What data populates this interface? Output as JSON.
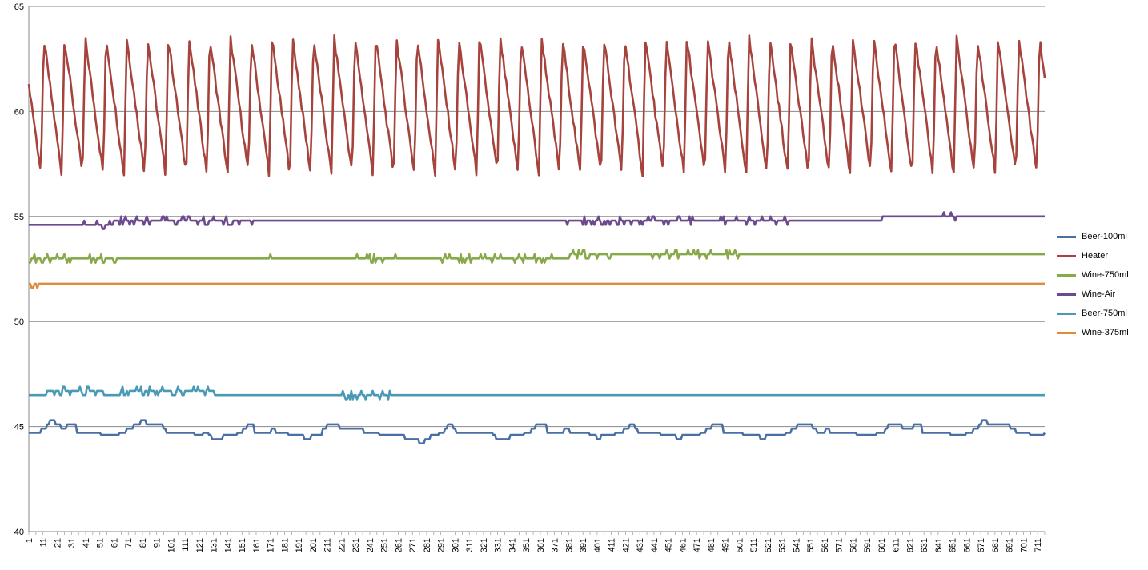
{
  "chart_data": {
    "type": "line",
    "title": "",
    "xlabel": "",
    "ylabel": "",
    "x_start": 1,
    "x_end": 716,
    "x_tick_labels": [
      "1",
      "11",
      "21",
      "31",
      "41",
      "51",
      "61",
      "71",
      "81",
      "91",
      "101",
      "111",
      "121",
      "131",
      "141",
      "151",
      "161",
      "171",
      "181",
      "191",
      "201",
      "211",
      "221",
      "231",
      "241",
      "251",
      "261",
      "271",
      "281",
      "291",
      "301",
      "311",
      "321",
      "331",
      "341",
      "351",
      "361",
      "371",
      "381",
      "391",
      "401",
      "411",
      "421",
      "431",
      "441",
      "451",
      "461",
      "471",
      "481",
      "491",
      "501",
      "511",
      "521",
      "531",
      "541",
      "551",
      "561",
      "571",
      "581",
      "591",
      "601",
      "611",
      "621",
      "631",
      "641",
      "651",
      "661",
      "671",
      "681",
      "691",
      "701",
      "711"
    ],
    "y_ticks": [
      "40",
      "45",
      "50",
      "55",
      "60",
      "65"
    ],
    "ylim": [
      40,
      65
    ],
    "grid": "horizontal major gridlines",
    "legend_position": "right",
    "series": [
      {
        "name": "Beer-100ml",
        "color": "#4a6fa5",
        "description_points": [
          [
            1,
            44.7
          ],
          [
            8,
            44.7
          ],
          [
            10,
            44.9
          ],
          [
            14,
            45.1
          ],
          [
            16,
            45.3
          ],
          [
            20,
            45.1
          ],
          [
            24,
            44.9
          ],
          [
            28,
            45.1
          ],
          [
            33,
            45.1
          ],
          [
            35,
            44.7
          ],
          [
            50,
            44.7
          ],
          [
            52,
            44.6
          ],
          [
            63,
            44.6
          ],
          [
            65,
            44.7
          ],
          [
            70,
            44.9
          ],
          [
            75,
            45.1
          ],
          [
            80,
            45.3
          ],
          [
            84,
            45.1
          ],
          [
            90,
            45.1
          ],
          [
            96,
            44.9
          ],
          [
            98,
            44.7
          ],
          [
            115,
            44.7
          ],
          [
            118,
            44.6
          ],
          [
            124,
            44.7
          ],
          [
            128,
            44.6
          ],
          [
            130,
            44.4
          ],
          [
            136,
            44.4
          ],
          [
            138,
            44.6
          ],
          [
            146,
            44.6
          ],
          [
            148,
            44.7
          ],
          [
            152,
            44.9
          ],
          [
            155,
            45.1
          ],
          [
            158,
            45.1
          ],
          [
            160,
            44.7
          ],
          [
            170,
            44.7
          ],
          [
            172,
            44.9
          ],
          [
            175,
            44.7
          ],
          [
            180,
            44.7
          ],
          [
            184,
            44.6
          ],
          [
            190,
            44.6
          ],
          [
            195,
            44.4
          ],
          [
            200,
            44.6
          ],
          [
            205,
            44.6
          ],
          [
            208,
            44.9
          ],
          [
            211,
            45.1
          ],
          [
            218,
            45.1
          ],
          [
            220,
            44.9
          ],
          [
            234,
            44.9
          ],
          [
            237,
            44.7
          ],
          [
            245,
            44.7
          ],
          [
            248,
            44.6
          ],
          [
            262,
            44.6
          ],
          [
            266,
            44.4
          ],
          [
            274,
            44.4
          ],
          [
            276,
            44.2
          ],
          [
            280,
            44.4
          ],
          [
            284,
            44.6
          ],
          [
            290,
            44.7
          ],
          [
            294,
            44.9
          ],
          [
            296,
            45.1
          ],
          [
            300,
            44.9
          ],
          [
            302,
            44.7
          ],
          [
            325,
            44.7
          ],
          [
            328,
            44.6
          ],
          [
            330,
            44.4
          ],
          [
            338,
            44.4
          ],
          [
            340,
            44.6
          ],
          [
            346,
            44.6
          ],
          [
            350,
            44.7
          ],
          [
            355,
            44.9
          ],
          [
            358,
            45.1
          ],
          [
            364,
            45.1
          ],
          [
            366,
            44.7
          ],
          [
            374,
            44.7
          ],
          [
            378,
            44.9
          ],
          [
            382,
            44.7
          ],
          [
            392,
            44.7
          ],
          [
            396,
            44.6
          ],
          [
            401,
            44.4
          ],
          [
            404,
            44.6
          ],
          [
            410,
            44.6
          ],
          [
            414,
            44.7
          ],
          [
            420,
            44.9
          ],
          [
            424,
            45.1
          ],
          [
            428,
            44.9
          ],
          [
            430,
            44.7
          ],
          [
            442,
            44.7
          ],
          [
            446,
            44.6
          ],
          [
            454,
            44.6
          ],
          [
            457,
            44.4
          ],
          [
            461,
            44.6
          ],
          [
            470,
            44.6
          ],
          [
            474,
            44.7
          ],
          [
            478,
            44.9
          ],
          [
            482,
            45.1
          ],
          [
            486,
            45.1
          ],
          [
            490,
            44.7
          ],
          [
            500,
            44.7
          ],
          [
            504,
            44.6
          ],
          [
            512,
            44.6
          ],
          [
            516,
            44.4
          ],
          [
            520,
            44.6
          ],
          [
            530,
            44.6
          ],
          [
            534,
            44.7
          ],
          [
            538,
            44.9
          ],
          [
            542,
            45.1
          ],
          [
            550,
            45.1
          ],
          [
            553,
            44.9
          ],
          [
            556,
            44.7
          ],
          [
            562,
            44.9
          ],
          [
            565,
            44.7
          ],
          [
            580,
            44.7
          ],
          [
            584,
            44.6
          ],
          [
            596,
            44.6
          ],
          [
            598,
            44.7
          ],
          [
            604,
            44.9
          ],
          [
            606,
            45.1
          ],
          [
            614,
            45.1
          ],
          [
            616,
            44.9
          ],
          [
            622,
            44.9
          ],
          [
            624,
            45.1
          ],
          [
            628,
            45.1
          ],
          [
            630,
            44.7
          ],
          [
            646,
            44.7
          ],
          [
            650,
            44.6
          ],
          [
            658,
            44.6
          ],
          [
            661,
            44.7
          ],
          [
            666,
            44.9
          ],
          [
            670,
            45.1
          ],
          [
            672,
            45.3
          ],
          [
            676,
            45.1
          ],
          [
            690,
            45.1
          ],
          [
            692,
            44.9
          ],
          [
            696,
            44.7
          ],
          [
            704,
            44.7
          ],
          [
            706,
            44.6
          ],
          [
            714,
            44.6
          ],
          [
            716,
            44.7
          ]
        ]
      },
      {
        "name": "Heater",
        "color": "#a6433d",
        "period": 14.6,
        "high": 63.5,
        "low": 57.0,
        "phase_start": 1,
        "initial_value": 61.3,
        "last_value": 61.6
      },
      {
        "name": "Wine-750ml",
        "color": "#86a94a",
        "description_points": [
          [
            1,
            52.8
          ],
          [
            2,
            53.0
          ],
          [
            170,
            53.0
          ],
          [
            170,
            53.2
          ],
          [
            172,
            53.0
          ],
          [
            380,
            53.0
          ],
          [
            382,
            53.2
          ],
          [
            716,
            53.2
          ]
        ]
      },
      {
        "name": "Wine-Air",
        "color": "#6d4a8f",
        "description_points": [
          [
            1,
            54.6
          ],
          [
            60,
            54.6
          ],
          [
            62,
            54.8
          ],
          [
            150,
            54.8
          ],
          [
            152,
            54.8
          ],
          [
            600,
            54.8
          ],
          [
            602,
            55.0
          ],
          [
            716,
            55.0
          ]
        ]
      },
      {
        "name": "Beer-750ml",
        "color": "#4a9ab5",
        "description_points": [
          [
            1,
            46.5
          ],
          [
            12,
            46.5
          ],
          [
            14,
            46.7
          ],
          [
            52,
            46.7
          ],
          [
            54,
            46.5
          ],
          [
            64,
            46.5
          ],
          [
            66,
            46.7
          ],
          [
            130,
            46.7
          ],
          [
            132,
            46.5
          ],
          [
            716,
            46.5
          ]
        ]
      },
      {
        "name": "Wine-375ml",
        "color": "#e08a3c",
        "description_points": [
          [
            1,
            51.8
          ],
          [
            3,
            51.6
          ],
          [
            5,
            51.8
          ],
          [
            7,
            51.6
          ],
          [
            8,
            51.8
          ],
          [
            716,
            51.8
          ]
        ]
      }
    ]
  }
}
